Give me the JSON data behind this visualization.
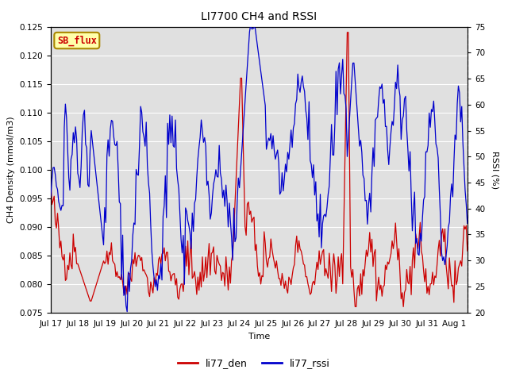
{
  "title": "LI7700 CH4 and RSSI",
  "xlabel": "Time",
  "ylabel_left": "CH4 Density (mmol/m3)",
  "ylabel_right": "RSSI (%)",
  "ylim_left": [
    0.075,
    0.125
  ],
  "ylim_right": [
    20,
    75
  ],
  "yticks_left": [
    0.075,
    0.08,
    0.085,
    0.09,
    0.095,
    0.1,
    0.105,
    0.11,
    0.115,
    0.12,
    0.125
  ],
  "yticks_right": [
    20,
    25,
    30,
    35,
    40,
    45,
    50,
    55,
    60,
    65,
    70,
    75
  ],
  "color_red": "#cc0000",
  "color_blue": "#0000cc",
  "legend_label_red": "li77_den",
  "legend_label_blue": "li77_rssi",
  "annotation_text": "SB_flux",
  "annotation_bg": "#ffffaa",
  "annotation_border": "#aa8800",
  "background_color": "#e0e0e0",
  "title_fontsize": 10,
  "axis_label_fontsize": 8,
  "tick_fontsize": 7.5,
  "tick_positions": [
    0,
    1,
    2,
    3,
    4,
    5,
    6,
    7,
    8,
    9,
    10,
    11,
    12,
    13,
    14,
    15
  ],
  "tick_labels": [
    "Jul 17",
    "Jul 18",
    "Jul 19",
    "Jul 20",
    "Jul 21",
    "Jul 22",
    "Jul 23",
    "Jul 24",
    "Jul 25",
    "Jul 26",
    "Jul 27",
    "Jul 28",
    "Jul 29",
    "Jul 30",
    "Jul 31",
    "Aug 1"
  ]
}
